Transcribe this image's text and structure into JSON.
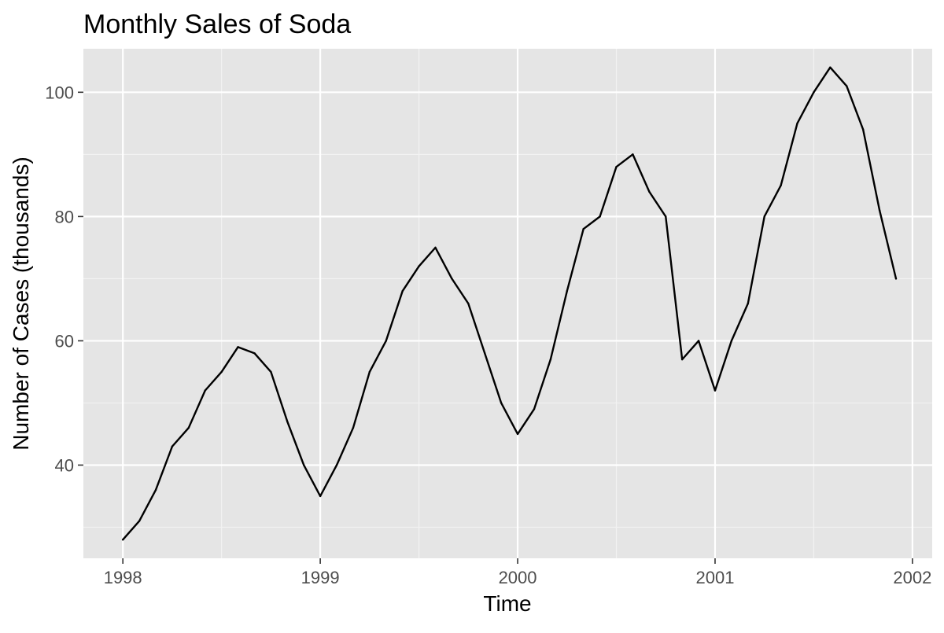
{
  "chart_data": {
    "type": "line",
    "title": "Monthly Sales of Soda",
    "xlabel": "Time",
    "ylabel": "Number of Cases (thousands)",
    "xlim": [
      1997.8,
      2002.1
    ],
    "ylim": [
      25,
      107
    ],
    "x_ticks": [
      1998,
      1999,
      2000,
      2001,
      2002
    ],
    "x_tick_labels": [
      "1998",
      "1999",
      "2000",
      "2001",
      "2002"
    ],
    "y_ticks": [
      40,
      60,
      80,
      100
    ],
    "y_tick_labels": [
      "40",
      "60",
      "80",
      "100"
    ],
    "x_minor_gridlines": [
      1998.5,
      1999.5,
      2000.5,
      2001.5
    ],
    "y_minor_gridlines": [
      30,
      50,
      70,
      90
    ],
    "grid": true,
    "series": [
      {
        "color": "#000000",
        "x": [
          "1998-01",
          "1998-02",
          "1998-03",
          "1998-04",
          "1998-05",
          "1998-06",
          "1998-07",
          "1998-08",
          "1998-09",
          "1998-10",
          "1998-11",
          "1998-12",
          "1999-01",
          "1999-02",
          "1999-03",
          "1999-04",
          "1999-05",
          "1999-06",
          "1999-07",
          "1999-08",
          "1999-09",
          "1999-10",
          "1999-11",
          "1999-12",
          "2000-01",
          "2000-02",
          "2000-03",
          "2000-04",
          "2000-05",
          "2000-06",
          "2000-07",
          "2000-08",
          "2000-09",
          "2000-10",
          "2000-11",
          "2000-12",
          "2001-01",
          "2001-02",
          "2001-03",
          "2001-04",
          "2001-05",
          "2001-06",
          "2001-07",
          "2001-08",
          "2001-09",
          "2001-10",
          "2001-11",
          "2001-12"
        ],
        "values": [
          28,
          31,
          36,
          43,
          46,
          52,
          55,
          59,
          58,
          55,
          47,
          40,
          35,
          40,
          46,
          55,
          60,
          68,
          72,
          75,
          70,
          66,
          58,
          50,
          45,
          49,
          57,
          68,
          78,
          80,
          88,
          90,
          84,
          80,
          57,
          60,
          52,
          60,
          66,
          80,
          85,
          95,
          100,
          104,
          101,
          94,
          81,
          70
        ]
      }
    ]
  },
  "colors": {
    "panel_background": "#e5e5e5",
    "grid_major": "#ffffff",
    "grid_minor": "#f2f2f2",
    "line": "#000000",
    "tick_text": "#4d4d4d"
  }
}
